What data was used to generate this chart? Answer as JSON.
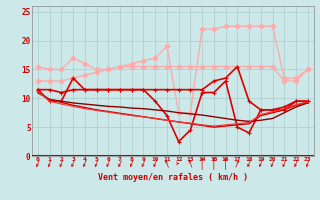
{
  "title": "",
  "xlabel": "Vent moyen/en rafales ( km/h )",
  "background_color": "#cce8e8",
  "grid_color": "#aacccc",
  "x": [
    0,
    1,
    2,
    3,
    4,
    5,
    6,
    7,
    8,
    9,
    10,
    11,
    12,
    13,
    14,
    15,
    16,
    17,
    18,
    19,
    20,
    21,
    22,
    23
  ],
  "series": [
    {
      "y": [
        15.5,
        15.0,
        15.0,
        17.0,
        16.0,
        15.0,
        15.0,
        15.5,
        15.5,
        15.5,
        15.5,
        15.5,
        15.5,
        15.5,
        15.5,
        15.5,
        15.5,
        15.5,
        15.5,
        15.5,
        15.5,
        13.0,
        13.0,
        15.0
      ],
      "color": "#ffaaaa",
      "lw": 1.0,
      "marker": "D",
      "ms": 2.5
    },
    {
      "y": [
        13.0,
        13.0,
        13.0,
        13.5,
        14.0,
        14.5,
        15.0,
        15.5,
        16.0,
        16.5,
        17.0,
        19.0,
        7.5,
        7.5,
        22.0,
        22.0,
        22.5,
        22.5,
        22.5,
        22.5,
        22.5,
        13.5,
        13.5,
        15.0
      ],
      "color": "#ffaaaa",
      "lw": 1.0,
      "marker": "D",
      "ms": 2.5
    },
    {
      "y": [
        11.5,
        11.5,
        11.0,
        11.5,
        11.5,
        11.5,
        11.5,
        11.5,
        11.5,
        11.5,
        11.5,
        11.5,
        11.5,
        11.5,
        11.5,
        13.0,
        13.5,
        15.5,
        9.5,
        8.0,
        8.0,
        8.0,
        9.5,
        9.5
      ],
      "color": "#dd0000",
      "lw": 1.2,
      "marker": "+",
      "ms": 3.0
    },
    {
      "y": [
        11.5,
        9.5,
        9.5,
        13.5,
        11.5,
        11.5,
        11.5,
        11.5,
        11.5,
        11.5,
        9.5,
        7.0,
        2.5,
        4.5,
        11.0,
        11.0,
        13.0,
        5.0,
        4.0,
        8.0,
        8.0,
        8.5,
        9.5,
        9.5
      ],
      "color": "#dd0000",
      "lw": 1.2,
      "marker": "+",
      "ms": 3.0
    },
    {
      "y": [
        11.0,
        9.8,
        9.5,
        9.2,
        9.0,
        8.8,
        8.6,
        8.5,
        8.3,
        8.2,
        8.0,
        7.8,
        7.5,
        7.3,
        7.1,
        6.8,
        6.5,
        6.2,
        6.0,
        6.2,
        6.5,
        7.5,
        8.5,
        9.2
      ],
      "color": "#880000",
      "lw": 1.0,
      "marker": null,
      "ms": 0
    },
    {
      "y": [
        11.0,
        9.8,
        9.3,
        8.8,
        8.4,
        8.0,
        7.7,
        7.4,
        7.1,
        6.8,
        6.5,
        6.2,
        5.9,
        5.6,
        5.3,
        5.0,
        5.2,
        5.4,
        5.6,
        7.0,
        7.5,
        8.0,
        8.8,
        9.3
      ],
      "color": "#cc0000",
      "lw": 1.0,
      "marker": null,
      "ms": 0
    },
    {
      "y": [
        11.2,
        9.5,
        9.0,
        8.6,
        8.2,
        7.9,
        7.6,
        7.3,
        7.0,
        6.8,
        6.5,
        6.2,
        5.9,
        5.7,
        5.4,
        5.2,
        5.4,
        5.6,
        5.8,
        7.2,
        7.7,
        8.2,
        8.9,
        9.4
      ],
      "color": "#ff3333",
      "lw": 0.8,
      "marker": null,
      "ms": 0
    }
  ],
  "ylim": [
    0,
    26
  ],
  "yticks": [
    0,
    5,
    10,
    15,
    20,
    25
  ],
  "xlim": [
    -0.5,
    23.5
  ],
  "figsize": [
    3.2,
    2.0
  ],
  "dpi": 100
}
